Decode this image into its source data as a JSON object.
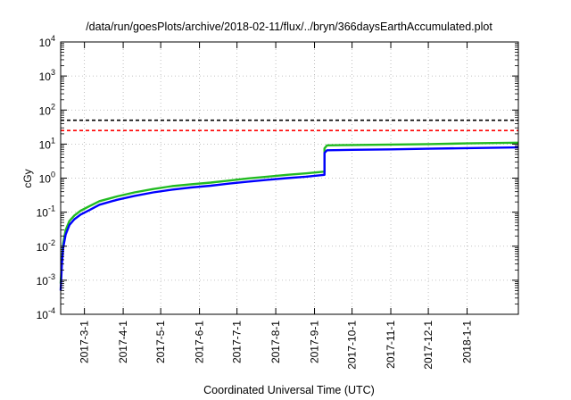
{
  "chart_data": {
    "type": "line",
    "title": "/data/run/goesPlots/archive/2018-02-11/flux/../bryn/366daysEarthAccumulated.plot",
    "xlabel": "Coordinated Universal Time (UTC)",
    "ylabel": "cGy",
    "y_scale": "log",
    "ylim": [
      0.0001,
      10000
    ],
    "y_ticks": [
      {
        "value": 0.0001,
        "base": "10",
        "exp": "-4"
      },
      {
        "value": 0.001,
        "base": "10",
        "exp": "-3"
      },
      {
        "value": 0.01,
        "base": "10",
        "exp": "-2"
      },
      {
        "value": 0.1,
        "base": "10",
        "exp": "-1"
      },
      {
        "value": 1,
        "base": "10",
        "exp": "0"
      },
      {
        "value": 10,
        "base": "10",
        "exp": "1"
      },
      {
        "value": 100,
        "base": "10",
        "exp": "2"
      },
      {
        "value": 1000,
        "base": "10",
        "exp": "3"
      },
      {
        "value": 10000,
        "base": "10",
        "exp": "4"
      }
    ],
    "xlim": [
      "2017-02-10",
      "2018-02-11"
    ],
    "x_ticks": [
      "2017-3-1",
      "2017-4-1",
      "2017-5-1",
      "2017-6-1",
      "2017-7-1",
      "2017-8-1",
      "2017-9-1",
      "2017-10-1",
      "2017-11-1",
      "2017-12-1",
      "2018-1-1"
    ],
    "x_tick_dates": [
      "2017-03-01",
      "2017-04-01",
      "2017-05-01",
      "2017-06-01",
      "2017-07-01",
      "2017-08-01",
      "2017-09-01",
      "2017-10-01",
      "2017-11-01",
      "2017-12-01",
      "2018-01-01"
    ],
    "grid": true,
    "reference_lines": [
      {
        "y": 50,
        "color": "#000000",
        "style": "dashed"
      },
      {
        "y": 25,
        "color": "#ff0000",
        "style": "dashed"
      }
    ],
    "series": [
      {
        "color": "#22bb22",
        "points": [
          [
            "2017-02-10",
            0.0008
          ],
          [
            "2017-02-11",
            0.004
          ],
          [
            "2017-02-12",
            0.012
          ],
          [
            "2017-02-14",
            0.03
          ],
          [
            "2017-02-17",
            0.055
          ],
          [
            "2017-02-21",
            0.08
          ],
          [
            "2017-02-26",
            0.11
          ],
          [
            "2017-03-05",
            0.15
          ],
          [
            "2017-03-13",
            0.21
          ],
          [
            "2017-03-27",
            0.29
          ],
          [
            "2017-04-10",
            0.38
          ],
          [
            "2017-04-25",
            0.48
          ],
          [
            "2017-05-10",
            0.58
          ],
          [
            "2017-05-25",
            0.66
          ],
          [
            "2017-06-10",
            0.74
          ],
          [
            "2017-06-25",
            0.85
          ],
          [
            "2017-07-10",
            0.98
          ],
          [
            "2017-07-25",
            1.1
          ],
          [
            "2017-08-10",
            1.25
          ],
          [
            "2017-08-25",
            1.38
          ],
          [
            "2017-09-09",
            1.55
          ],
          [
            "2017-09-09",
            7.5
          ],
          [
            "2017-09-11",
            9.2
          ],
          [
            "2017-10-01",
            9.4
          ],
          [
            "2017-11-01",
            9.7
          ],
          [
            "2017-12-01",
            10.0
          ],
          [
            "2018-01-01",
            10.5
          ],
          [
            "2018-02-11",
            11.0
          ]
        ]
      },
      {
        "color": "#0000ff",
        "points": [
          [
            "2017-02-10",
            0.0005
          ],
          [
            "2017-02-11",
            0.003
          ],
          [
            "2017-02-12",
            0.009
          ],
          [
            "2017-02-14",
            0.022
          ],
          [
            "2017-02-17",
            0.042
          ],
          [
            "2017-02-21",
            0.062
          ],
          [
            "2017-02-26",
            0.085
          ],
          [
            "2017-03-05",
            0.115
          ],
          [
            "2017-03-13",
            0.165
          ],
          [
            "2017-03-27",
            0.23
          ],
          [
            "2017-04-10",
            0.3
          ],
          [
            "2017-04-25",
            0.38
          ],
          [
            "2017-05-10",
            0.46
          ],
          [
            "2017-05-25",
            0.53
          ],
          [
            "2017-06-10",
            0.6
          ],
          [
            "2017-06-25",
            0.69
          ],
          [
            "2017-07-10",
            0.79
          ],
          [
            "2017-07-25",
            0.89
          ],
          [
            "2017-08-10",
            1.0
          ],
          [
            "2017-08-25",
            1.1
          ],
          [
            "2017-09-09",
            1.25
          ],
          [
            "2017-09-09",
            5.5
          ],
          [
            "2017-09-11",
            6.6
          ],
          [
            "2017-10-01",
            6.8
          ],
          [
            "2017-11-01",
            7.0
          ],
          [
            "2017-12-01",
            7.3
          ],
          [
            "2018-01-01",
            7.6
          ],
          [
            "2018-02-11",
            8.0
          ]
        ]
      }
    ]
  }
}
